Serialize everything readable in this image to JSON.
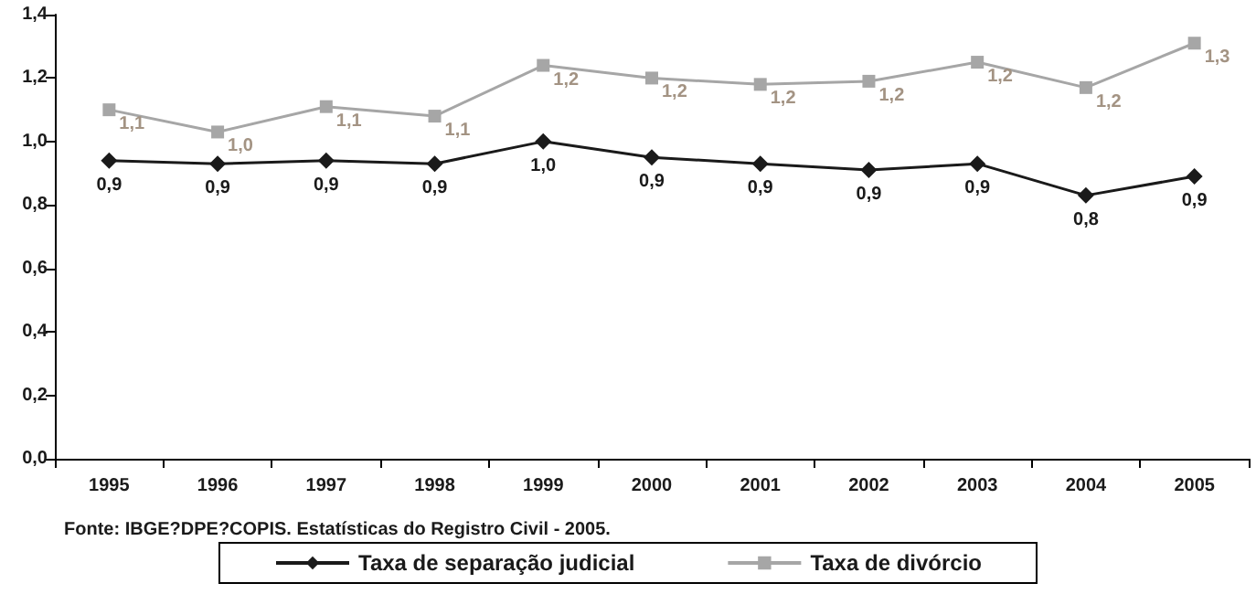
{
  "chart_data": {
    "type": "line",
    "categories": [
      "1995",
      "1996",
      "1997",
      "1998",
      "1999",
      "2000",
      "2001",
      "2002",
      "2003",
      "2004",
      "2005"
    ],
    "series": [
      {
        "name": "Taxa de separação judicial",
        "color": "#1a1a1a",
        "marker": "diamond",
        "values": [
          0.94,
          0.93,
          0.94,
          0.93,
          1.0,
          0.95,
          0.93,
          0.91,
          0.93,
          0.83,
          0.89
        ],
        "value_labels": [
          "0,9",
          "0,9",
          "0,9",
          "0,9",
          "1,0",
          "0,9",
          "0,9",
          "0,9",
          "0,9",
          "0,8",
          "0,9"
        ]
      },
      {
        "name": "Taxa de divórcio",
        "color": "#a6a6a6",
        "marker": "square",
        "values": [
          1.1,
          1.03,
          1.11,
          1.08,
          1.24,
          1.2,
          1.18,
          1.19,
          1.25,
          1.17,
          1.31
        ],
        "value_labels": [
          "1,1",
          "1,0",
          "1,1",
          "1,1",
          "1,2",
          "1,2",
          "1,2",
          "1,2",
          "1,2",
          "1,2",
          "1,3"
        ]
      }
    ],
    "ylim": [
      0,
      1.4
    ],
    "yticks": [
      {
        "value": 0,
        "label": "0,0"
      },
      {
        "value": 0.2,
        "label": "0,2"
      },
      {
        "value": 0.4,
        "label": "0,4"
      },
      {
        "value": 0.6,
        "label": "0,6"
      },
      {
        "value": 0.8,
        "label": "0,8"
      },
      {
        "value": 1.0,
        "label": "1,0"
      },
      {
        "value": 1.2,
        "label": "1,2"
      },
      {
        "value": 1.4,
        "label": "1,4"
      }
    ],
    "grid": false,
    "legend": "bottom",
    "line_style": "solid",
    "annotations": [
      "Fonte: IBGE?DPE?COPIS. Estatísticas do Registro Civil - 2005."
    ]
  }
}
